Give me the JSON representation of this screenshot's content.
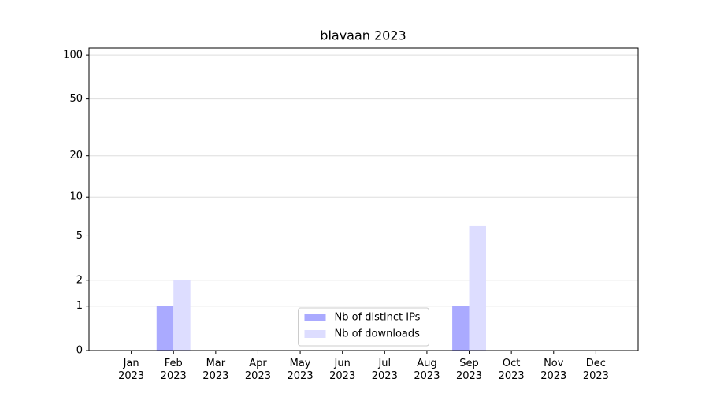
{
  "chart_data": {
    "type": "bar",
    "title": "blavaan 2023",
    "categories": [
      "Jan 2023",
      "Feb 2023",
      "Mar 2023",
      "Apr 2023",
      "May 2023",
      "Jun 2023",
      "Jul 2023",
      "Aug 2023",
      "Sep 2023",
      "Oct 2023",
      "Nov 2023",
      "Dec 2023"
    ],
    "series": [
      {
        "name": "Nb of distinct IPs",
        "color": "#aaaaff",
        "values": [
          0,
          1,
          0,
          0,
          0,
          0,
          0,
          0,
          1,
          0,
          0,
          0
        ]
      },
      {
        "name": "Nb of downloads",
        "color": "#ddddff",
        "values": [
          0,
          2,
          0,
          0,
          0,
          0,
          0,
          0,
          6,
          0,
          0,
          0
        ]
      }
    ],
    "yscale": "log1p",
    "ylim": [
      0,
      112
    ],
    "yticks": [
      0,
      1,
      2,
      5,
      10,
      20,
      50,
      100
    ],
    "grid": true,
    "legend": "lower center"
  }
}
